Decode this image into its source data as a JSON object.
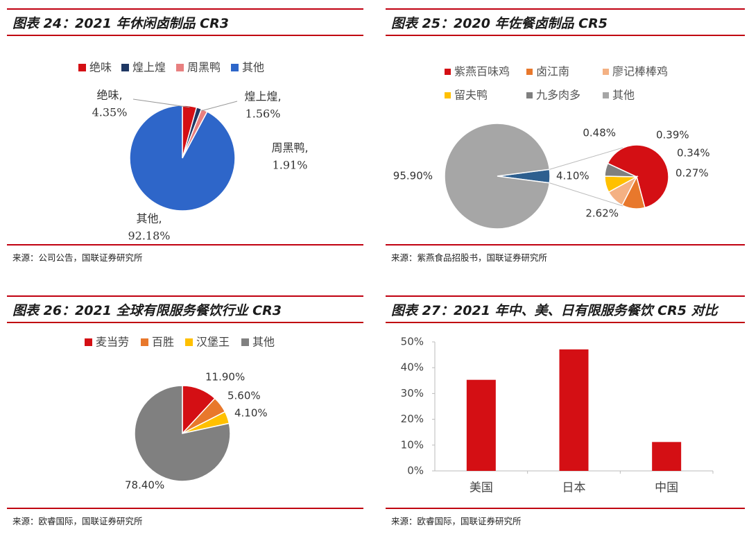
{
  "panels": [
    {
      "title": "图表 24：2021 年休闲卤制品 CR3",
      "source": "来源：公司公告，国联证券研究所",
      "chart_data": {
        "type": "pie",
        "title": "",
        "labels": [
          "绝味",
          "煌上煌",
          "周黑鸭",
          "其他"
        ],
        "values": [
          4.35,
          1.56,
          1.91,
          92.18
        ],
        "value_labels": [
          "4.35%",
          "1.56%",
          "1.91%",
          "92.18%"
        ],
        "callout_labels": [
          "绝味,",
          "煌上煌,",
          "周黑鸭,",
          "其他,"
        ],
        "colors": [
          "#d40f14",
          "#1f3864",
          "#e88080",
          "#2e66c9"
        ],
        "legend_position": "top"
      }
    },
    {
      "title": "图表 25：2020 年佐餐卤制品 CR5",
      "source": "来源：紫燕食品招股书，国联证券研究所",
      "chart_data": {
        "type": "pie",
        "title": "",
        "subtype": "pie-of-pie",
        "labels": [
          "紫燕百味鸡",
          "卤江南",
          "廖记棒棒鸡",
          "留夫鸭",
          "九多肉多",
          "其他"
        ],
        "values": [
          2.62,
          0.48,
          0.39,
          0.34,
          0.27,
          95.9
        ],
        "value_labels": [
          "2.62%",
          "0.48%",
          "0.39%",
          "0.34%",
          "0.27%",
          "95.90%"
        ],
        "combined_label": "4.10%",
        "colors": [
          "#d40f14",
          "#e8782c",
          "#f4b183",
          "#ffc000",
          "#7f7f7f",
          "#a6a6a6"
        ],
        "combined_color": "#2e5f8f",
        "legend_position": "top"
      }
    },
    {
      "title": "图表 26：2021 全球有限服务餐饮行业 CR3",
      "source": "来源：欧睿国际，国联证券研究所",
      "chart_data": {
        "type": "pie",
        "title": "",
        "labels": [
          "麦当劳",
          "百胜",
          "汉堡王",
          "其他"
        ],
        "values": [
          11.9,
          5.6,
          4.1,
          78.4
        ],
        "value_labels": [
          "11.90%",
          "5.60%",
          "4.10%",
          "78.40%"
        ],
        "colors": [
          "#d40f14",
          "#e8782c",
          "#ffc000",
          "#808080"
        ],
        "legend_position": "top"
      }
    },
    {
      "title": "图表 27：2021 年中、美、日有限服务餐饮 CR5 对比",
      "source": "来源：欧睿国际，国联证券研究所",
      "chart_data": {
        "type": "bar",
        "title": "",
        "categories": [
          "美国",
          "日本",
          "中国"
        ],
        "values": [
          35.3,
          47.1,
          11.2
        ],
        "ylim": [
          0,
          50
        ],
        "yticks": [
          "0%",
          "10%",
          "20%",
          "30%",
          "40%",
          "50%"
        ],
        "xlabel": "",
        "ylabel": "",
        "grid": false,
        "color": "#d40f14"
      }
    }
  ]
}
